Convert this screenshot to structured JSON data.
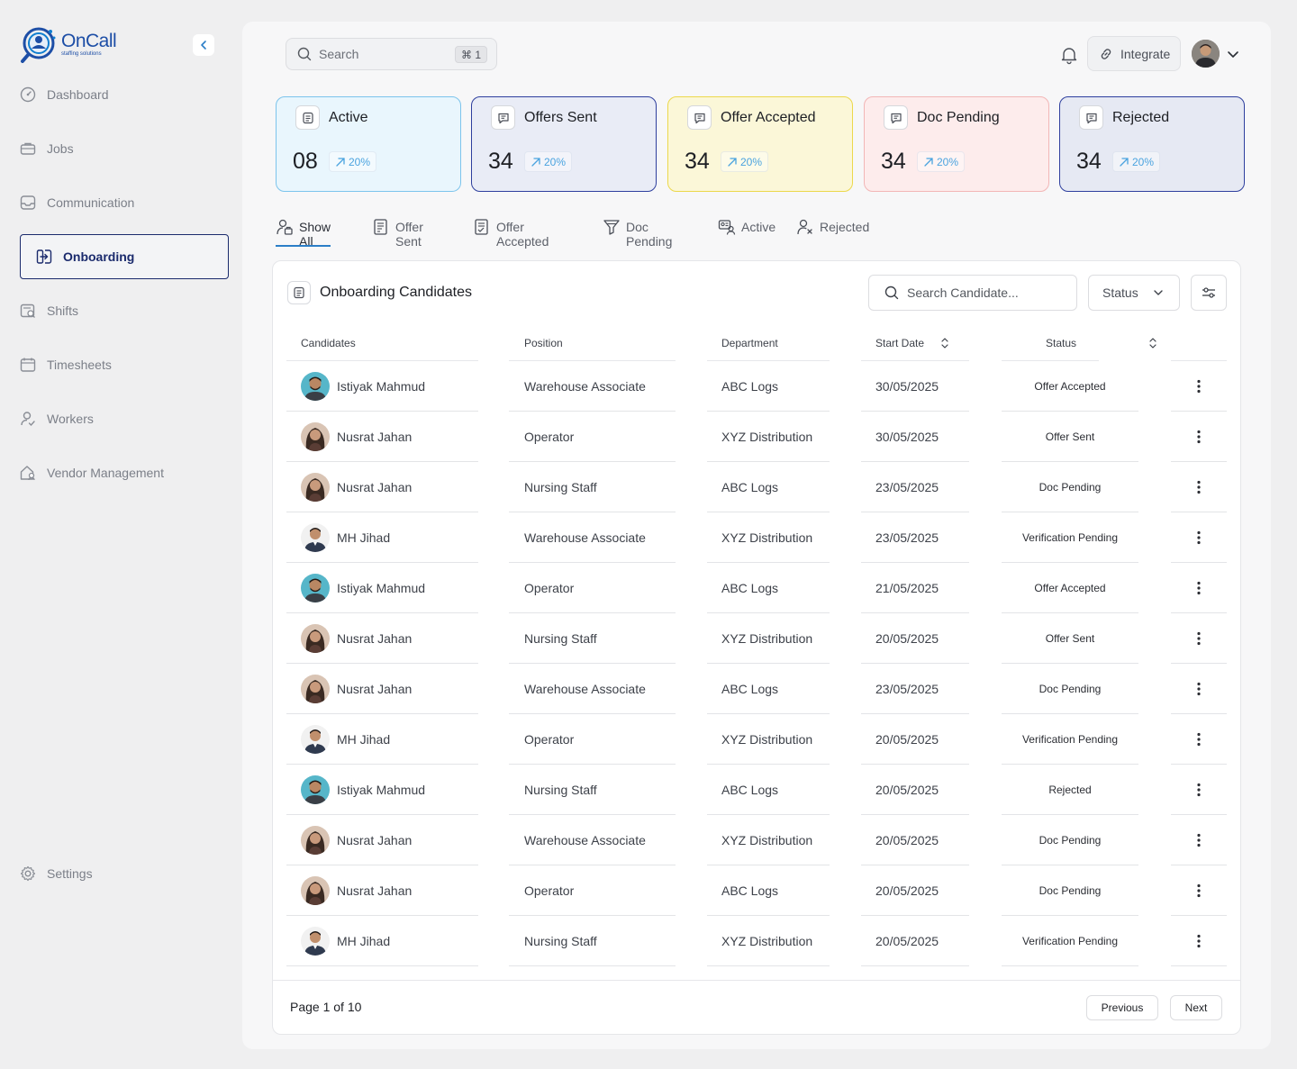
{
  "app": {
    "logo_name": "OnCall",
    "logo_tagline": "staffing solutions"
  },
  "sidebar": {
    "items": [
      {
        "label": "Dashboard",
        "icon": "dashboard-icon",
        "active": false
      },
      {
        "label": "Jobs",
        "icon": "briefcase-icon",
        "active": false
      },
      {
        "label": "Communication",
        "icon": "inbox-icon",
        "active": false
      },
      {
        "label": "Onboarding",
        "icon": "onboarding-icon",
        "active": true
      },
      {
        "label": "Shifts",
        "icon": "shifts-icon",
        "active": false
      },
      {
        "label": "Timesheets",
        "icon": "calendar-icon",
        "active": false
      },
      {
        "label": "Workers",
        "icon": "worker-icon",
        "active": false
      },
      {
        "label": "Vendor Management",
        "icon": "vendor-icon",
        "active": false
      }
    ],
    "settings_label": "Settings"
  },
  "header": {
    "search_placeholder": "Search",
    "search_shortcut": "⌘ 1",
    "integrate_label": "Integrate"
  },
  "stats": [
    {
      "label": "Active",
      "value": "08",
      "change": "20%",
      "bg": "#e9f6fd",
      "border": "#7cc4ec"
    },
    {
      "label": "Offers Sent",
      "value": "34",
      "change": "20%",
      "bg": "#e9ecf6",
      "border": "#2e3f9e"
    },
    {
      "label": "Offer Accepted",
      "value": "34",
      "change": "20%",
      "bg": "#fbf7d8",
      "border": "#ecd84b"
    },
    {
      "label": "Doc Pending",
      "value": "34",
      "change": "20%",
      "bg": "#fdecec",
      "border": "#f2b6b6"
    },
    {
      "label": "Rejected",
      "value": "34",
      "change": "20%",
      "bg": "#e6e9f3",
      "border": "#2e3f9e"
    }
  ],
  "tabs": [
    {
      "label": "Show All",
      "icon": "users-icon",
      "active": true
    },
    {
      "label": "Offer Sent",
      "icon": "document-icon",
      "active": false
    },
    {
      "label": "Offer Accepted",
      "icon": "document-check-icon",
      "active": false
    },
    {
      "label": "Doc Pending",
      "icon": "funnel-icon",
      "active": false
    },
    {
      "label": "Active",
      "icon": "id-card-icon",
      "active": false
    },
    {
      "label": "Rejected",
      "icon": "user-x-icon",
      "active": false
    }
  ],
  "table": {
    "title": "Onboarding Candidates",
    "search_placeholder": "Search Candidate...",
    "status_filter_label": "Status",
    "columns": [
      "Candidates",
      "Position",
      "Department",
      "Start Date",
      "Status"
    ],
    "rows": [
      {
        "name": "Istiyak Mahmud",
        "avatar": "avatar-istiyak",
        "position": "Warehouse Associate",
        "department": "ABC Logs",
        "start": "30/05/2025",
        "status": "Offer Accepted"
      },
      {
        "name": "Nusrat Jahan",
        "avatar": "avatar-nusrat",
        "position": "Operator",
        "department": "XYZ Distribution",
        "start": "30/05/2025",
        "status": "Offer Sent"
      },
      {
        "name": "Nusrat Jahan",
        "avatar": "avatar-nusrat",
        "position": "Nursing Staff",
        "department": "ABC Logs",
        "start": "23/05/2025",
        "status": "Doc Pending"
      },
      {
        "name": "MH Jihad",
        "avatar": "avatar-jihad",
        "position": "Warehouse Associate",
        "department": "XYZ Distribution",
        "start": "23/05/2025",
        "status": "Verification Pending"
      },
      {
        "name": "Istiyak Mahmud",
        "avatar": "avatar-istiyak",
        "position": "Operator",
        "department": "ABC Logs",
        "start": "21/05/2025",
        "status": "Offer Accepted"
      },
      {
        "name": "Nusrat Jahan",
        "avatar": "avatar-nusrat",
        "position": "Nursing Staff",
        "department": "XYZ Distribution",
        "start": "20/05/2025",
        "status": "Offer Sent"
      },
      {
        "name": "Nusrat Jahan",
        "avatar": "avatar-nusrat",
        "position": "Warehouse Associate",
        "department": "ABC Logs",
        "start": "23/05/2025",
        "status": "Doc Pending"
      },
      {
        "name": "MH Jihad",
        "avatar": "avatar-jihad",
        "position": "Operator",
        "department": "XYZ Distribution",
        "start": "20/05/2025",
        "status": "Verification Pending"
      },
      {
        "name": "Istiyak Mahmud",
        "avatar": "avatar-istiyak",
        "position": "Nursing Staff",
        "department": "ABC Logs",
        "start": "20/05/2025",
        "status": "Rejected"
      },
      {
        "name": "Nusrat Jahan",
        "avatar": "avatar-nusrat",
        "position": "Warehouse Associate",
        "department": "XYZ Distribution",
        "start": "20/05/2025",
        "status": "Doc Pending"
      },
      {
        "name": "Nusrat Jahan",
        "avatar": "avatar-nusrat",
        "position": "Operator",
        "department": "ABC Logs",
        "start": "20/05/2025",
        "status": "Doc Pending"
      },
      {
        "name": "MH Jihad",
        "avatar": "avatar-jihad",
        "position": "Nursing Staff",
        "department": "XYZ Distribution",
        "start": "20/05/2025",
        "status": "Verification Pending"
      }
    ]
  },
  "pagination": {
    "info": "Page 1 of 10",
    "previous_label": "Previous",
    "next_label": "Next"
  }
}
